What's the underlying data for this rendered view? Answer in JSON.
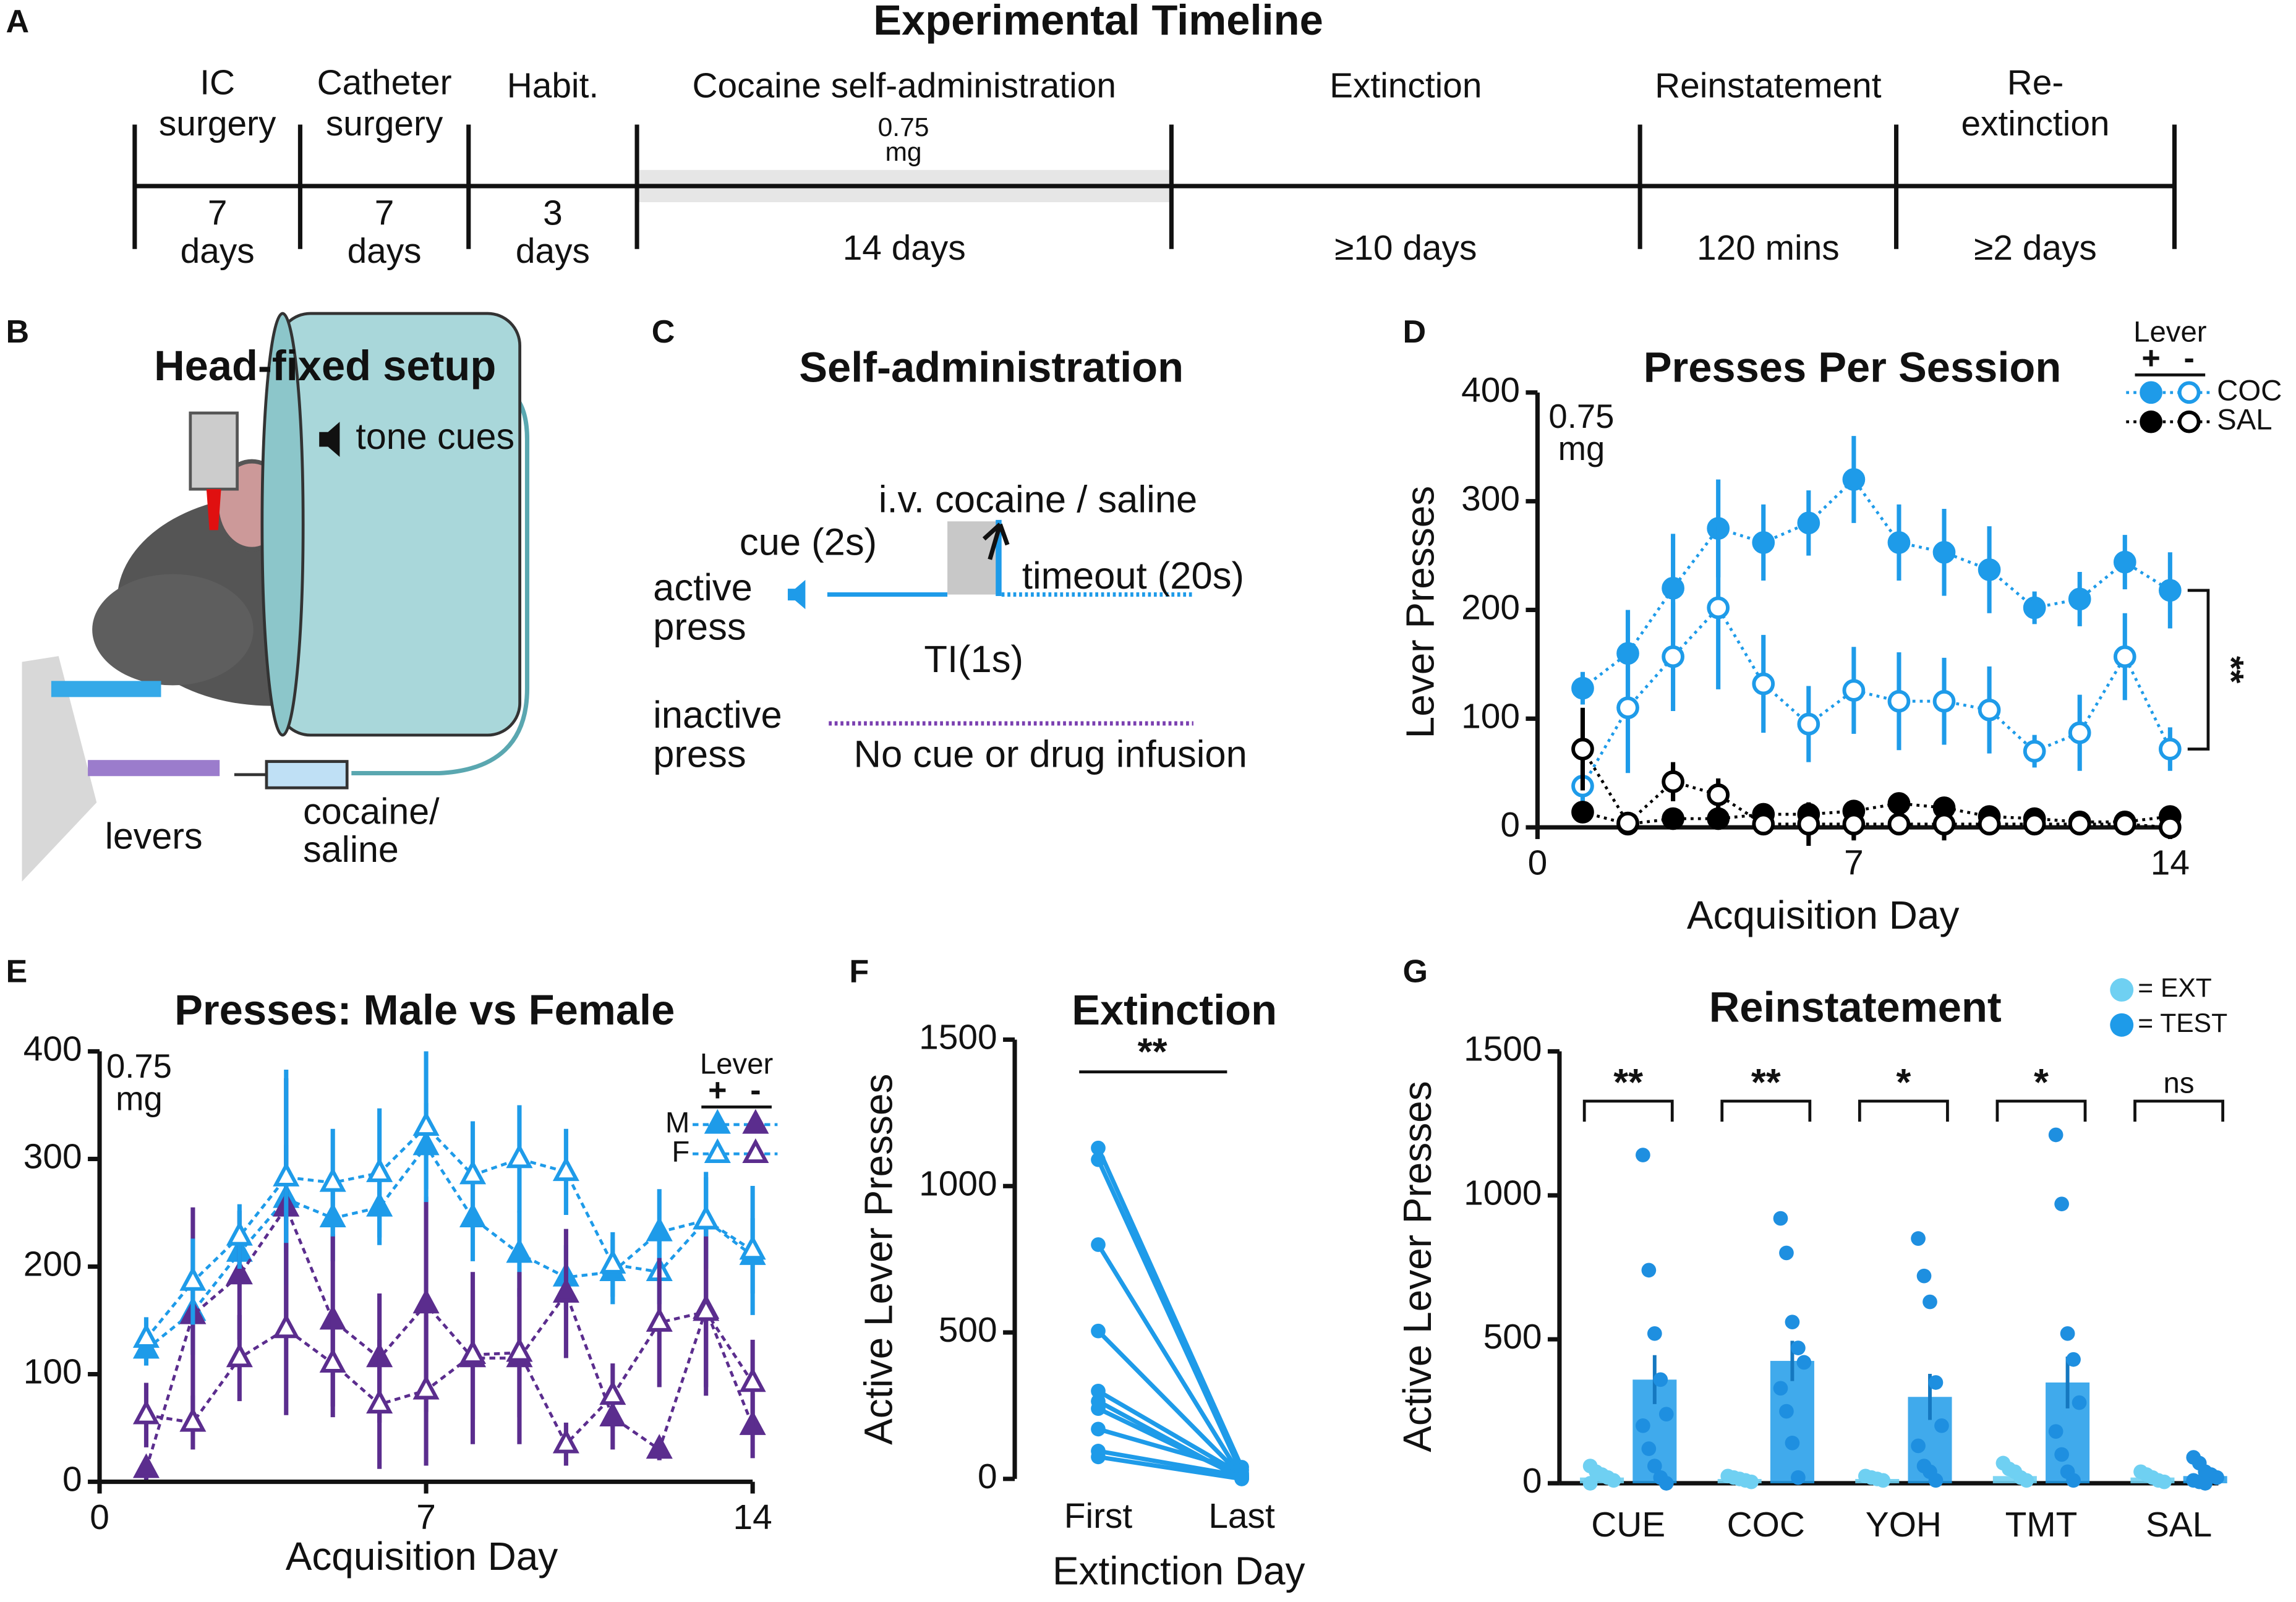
{
  "timeline": {
    "panel": "A",
    "title": "Experimental Timeline",
    "phases": [
      {
        "name": [
          "IC",
          "surgery"
        ],
        "duration": [
          "7",
          "days"
        ]
      },
      {
        "name": [
          "Catheter",
          "surgery"
        ],
        "duration": [
          "7",
          "days"
        ]
      },
      {
        "name": [
          "Habit."
        ],
        "duration": [
          "3",
          "days"
        ]
      },
      {
        "name": [
          "Cocaine self-administration"
        ],
        "duration": [
          "14 days"
        ]
      },
      {
        "name": [
          "Extinction"
        ],
        "duration": [
          "≥10 days"
        ]
      },
      {
        "name": [
          "Reinstatement"
        ],
        "duration": [
          "120 mins"
        ]
      },
      {
        "name": [
          "Re-",
          "extinction"
        ],
        "duration": [
          "≥2 days"
        ]
      }
    ],
    "dose": [
      "0.75",
      "mg"
    ]
  },
  "setup": {
    "panel": "B",
    "title": "Head-fixed setup",
    "tone": "tone cues",
    "levers": "levers",
    "syringe": [
      "cocaine/",
      "saline"
    ]
  },
  "self_admin": {
    "panel": "C",
    "title": "Self-administration",
    "infusion": "i.v. cocaine / saline",
    "cue": "cue (2s)",
    "active": [
      "active",
      "press"
    ],
    "timeout": "timeout (20s)",
    "ti": "TI(1s)",
    "inactive": [
      "inactive",
      "press"
    ],
    "no_cue": "No cue or drug infusion"
  },
  "chart_data": [
    {
      "type": "line",
      "panel": "D",
      "title": "Presses Per Session",
      "x_label": "Acquisition Day",
      "y_label": "Lever Presses",
      "note": [
        "0.75",
        "mg"
      ],
      "significance": "**",
      "line_style": "dotted",
      "x": [
        1,
        2,
        3,
        4,
        5,
        6,
        7,
        8,
        9,
        10,
        11,
        12,
        13,
        14
      ],
      "xlim": [
        0,
        14
      ],
      "xticks": [
        0,
        7,
        14
      ],
      "ylim": [
        0,
        400
      ],
      "yticks": [
        0,
        100,
        200,
        300,
        400
      ],
      "legend": {
        "title": "Lever",
        "columns": [
          "+",
          "-"
        ],
        "rows": [
          "COC",
          "SAL"
        ],
        "corner": "top-right"
      },
      "series": [
        {
          "color": "#1e9be9",
          "marker": "circle",
          "filled": true,
          "values": [
            128,
            160,
            220,
            275,
            262,
            280,
            320,
            262,
            253,
            237,
            202,
            210,
            244,
            218
          ],
          "errors": [
            15,
            40,
            50,
            45,
            35,
            30,
            40,
            35,
            40,
            40,
            15,
            25,
            25,
            35
          ]
        },
        {
          "color": "#1e9be9",
          "marker": "circle",
          "filled": false,
          "values": [
            38,
            110,
            157,
            202,
            132,
            95,
            126,
            116,
            116,
            108,
            70,
            87,
            157,
            72
          ],
          "errors": [
            20,
            60,
            50,
            75,
            45,
            35,
            40,
            45,
            40,
            40,
            15,
            35,
            40,
            20
          ]
        },
        {
          "color": "#000000",
          "marker": "circle",
          "filled": true,
          "values": [
            14,
            3,
            8,
            8,
            12,
            12,
            15,
            22,
            18,
            10,
            8,
            5,
            5,
            10
          ],
          "errors": [
            5,
            2,
            4,
            4,
            4,
            5,
            5,
            6,
            8,
            4,
            3,
            2,
            2,
            3
          ]
        },
        {
          "color": "#000000",
          "marker": "circle",
          "filled": false,
          "values": [
            72,
            4,
            42,
            30,
            3,
            3,
            3,
            3,
            3,
            3,
            3,
            3,
            3,
            0
          ],
          "errors": [
            38,
            3,
            18,
            15,
            3,
            20,
            15,
            5,
            15,
            5,
            4,
            2,
            2,
            3
          ]
        }
      ]
    },
    {
      "type": "line",
      "panel": "E",
      "title": "Presses: Male vs Female",
      "x_label": "Acquisition Day",
      "note": [
        "0.75",
        "mg"
      ],
      "line_style": "dashed",
      "x": [
        1,
        2,
        3,
        4,
        5,
        6,
        7,
        8,
        9,
        10,
        11,
        12,
        13,
        14
      ],
      "xlim": [
        0,
        14
      ],
      "xticks": [
        0,
        7,
        14
      ],
      "ylim": [
        0,
        400
      ],
      "yticks": [
        0,
        100,
        200,
        300,
        400
      ],
      "legend": {
        "title": "Lever",
        "columns": [
          "+",
          "-"
        ],
        "rows": [
          "M",
          "F"
        ],
        "corner": "top-right"
      },
      "series": [
        {
          "color": "#1e9be9",
          "marker": "triangle",
          "filled": true,
          "values": [
            123,
            158,
            213,
            263,
            245,
            255,
            312,
            245,
            212,
            190,
            195,
            232,
            243,
            210
          ],
          "errors": [
            15,
            40,
            25,
            50,
            40,
            35,
            40,
            40,
            40,
            30,
            30,
            40,
            45,
            35
          ]
        },
        {
          "color": "#5b2d8e",
          "marker": "triangle",
          "filled": true,
          "values": [
            12,
            155,
            192,
            255,
            150,
            115,
            165,
            115,
            115,
            175,
            60,
            30,
            160,
            52
          ],
          "errors": [
            10,
            100,
            60,
            120,
            80,
            60,
            100,
            80,
            80,
            60,
            30,
            10,
            80,
            30
          ]
        },
        {
          "color": "#1e9be9",
          "marker": "triangle",
          "filled": false,
          "values": [
            133,
            186,
            228,
            283,
            278,
            287,
            330,
            285,
            300,
            288,
            202,
            195,
            243,
            215
          ],
          "errors": [
            20,
            40,
            30,
            100,
            50,
            60,
            70,
            50,
            50,
            40,
            30,
            30,
            40,
            60
          ]
        },
        {
          "color": "#5b2d8e",
          "marker": "triangle",
          "filled": false,
          "values": [
            62,
            55,
            115,
            142,
            110,
            72,
            85,
            118,
            120,
            35,
            80,
            148,
            158,
            92
          ],
          "errors": [
            30,
            25,
            40,
            80,
            50,
            60,
            70,
            60,
            60,
            20,
            30,
            60,
            70,
            40
          ]
        }
      ]
    },
    {
      "type": "slope",
      "panel": "F",
      "title": "Extinction",
      "x_label": "Extinction Day",
      "y_label": "Active Lever Presses",
      "significance": "**",
      "color": "#1e9be9",
      "categories": [
        "First",
        "Last"
      ],
      "ylim": [
        0,
        1500
      ],
      "yticks": [
        0,
        500,
        1000,
        1500
      ],
      "series": [
        {
          "values": [
            1130,
            40
          ]
        },
        {
          "values": [
            1090,
            20
          ]
        },
        {
          "values": [
            800,
            5
          ]
        },
        {
          "values": [
            505,
            10
          ]
        },
        {
          "values": [
            300,
            15
          ]
        },
        {
          "values": [
            265,
            0
          ]
        },
        {
          "values": [
            240,
            5
          ]
        },
        {
          "values": [
            170,
            30
          ]
        },
        {
          "values": [
            95,
            10
          ]
        },
        {
          "values": [
            75,
            0
          ]
        }
      ]
    },
    {
      "type": "bar",
      "panel": "G",
      "title": "Reinstatement",
      "y_label": "Active Lever Presses",
      "categories": [
        "CUE",
        "COC",
        "YOH",
        "TMT",
        "SAL"
      ],
      "significance": [
        "**",
        "**",
        "*",
        "*",
        "ns"
      ],
      "ylim": [
        0,
        1500
      ],
      "yticks": [
        0,
        500,
        1000,
        1500
      ],
      "series": [
        {
          "name": "= EXT",
          "color": "#6fd0f2",
          "values": [
            20,
            15,
            15,
            25,
            20
          ],
          "points": [
            [
              60,
              40,
              30,
              20,
              10,
              0
            ],
            [
              25,
              20,
              15,
              10,
              5
            ],
            [
              25,
              20,
              15,
              10
            ],
            [
              70,
              50,
              40,
              20,
              10
            ],
            [
              40,
              30,
              20,
              10,
              5
            ]
          ]
        },
        {
          "name": "= TEST",
          "color": "#1e9be9",
          "values": [
            360,
            425,
            300,
            350,
            25
          ],
          "errors": [
            85,
            70,
            80,
            90,
            10
          ],
          "points": [
            [
              1140,
              740,
              520,
              360,
              240,
              200,
              120,
              60,
              20,
              0
            ],
            [
              920,
              800,
              560,
              470,
              420,
              330,
              250,
              140,
              20
            ],
            [
              850,
              720,
              630,
              350,
              200,
              130,
              60,
              40,
              10
            ],
            [
              1210,
              970,
              520,
              430,
              280,
              180,
              100,
              40,
              10
            ],
            [
              90,
              70,
              40,
              30,
              20,
              10,
              5,
              0
            ]
          ]
        }
      ]
    }
  ]
}
